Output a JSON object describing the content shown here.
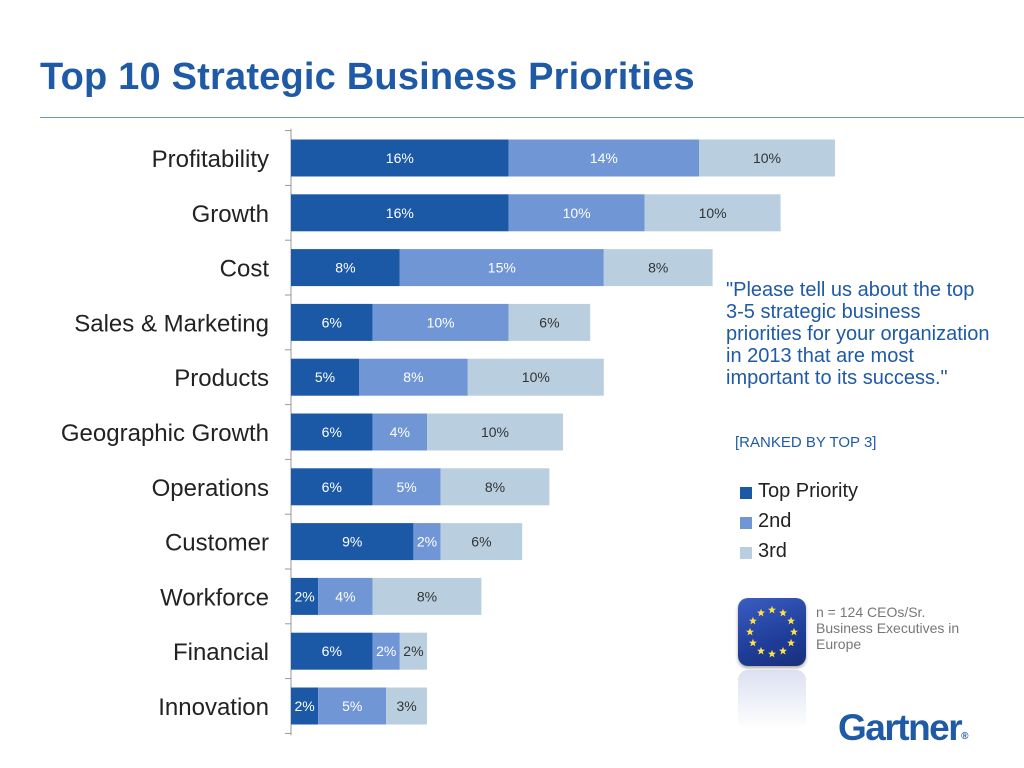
{
  "title": "Top 10 Strategic Business Priorities",
  "quote": "\"Please tell us about the top 3-5 strategic business priorities for your organization in 2013 that are most important to its success.\"",
  "ranked_note": "[RANKED BY TOP 3]",
  "sample_note": "n = 124 CEOs/Sr. Business Executives in Europe",
  "logo_text": "Gartner",
  "logo_mark": "®",
  "chart_data": {
    "type": "bar",
    "orientation": "horizontal",
    "stacked": true,
    "categories": [
      "Profitability",
      "Growth",
      "Cost",
      "Sales & Marketing",
      "Products",
      "Geographic Growth",
      "Operations",
      "Customer",
      "Workforce",
      "Financial",
      "Innovation"
    ],
    "series": [
      {
        "name": "Top Priority",
        "color": "#1b59a6",
        "values": [
          16,
          16,
          8,
          6,
          5,
          6,
          6,
          9,
          2,
          6,
          2
        ]
      },
      {
        "name": "2nd",
        "color": "#7096d6",
        "values": [
          14,
          10,
          15,
          10,
          8,
          4,
          5,
          2,
          4,
          2,
          5
        ]
      },
      {
        "name": "3rd",
        "color": "#b9cfe0",
        "values": [
          10,
          10,
          8,
          6,
          10,
          10,
          8,
          6,
          8,
          2,
          3
        ]
      }
    ],
    "value_suffix": "%",
    "legend_position": "right",
    "grid": false
  },
  "colors": {
    "title": "#1f5aa6",
    "top": "#1b59a6",
    "second": "#7096d6",
    "third": "#b9cfe0"
  },
  "icons": {
    "badge": "eu-stars-icon"
  }
}
